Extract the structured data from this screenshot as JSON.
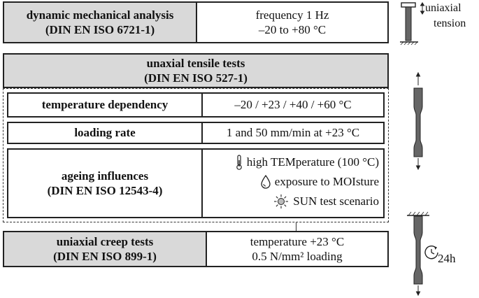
{
  "dma": {
    "title": "dynamic mechanical analysis",
    "standard": "(DIN EN ISO 6721-1)",
    "param1": "frequency 1 Hz",
    "param2": "–20 to +80 °C"
  },
  "tensile": {
    "title": "unaxial tensile tests",
    "standard": "(DIN EN ISO 527-1)",
    "temperature": {
      "label": "temperature dependency",
      "value": "–20 / +23 / +40 / +60 °C"
    },
    "loading": {
      "label": "loading rate",
      "value": "1 and 50 mm/min at +23 °C"
    },
    "ageing": {
      "label": "ageing influences",
      "standard": "(DIN EN ISO 12543-4)",
      "items": [
        {
          "text": "high TEMperature (100 °C)",
          "icon": "thermometer-icon"
        },
        {
          "text": "exposure to MOIsture",
          "icon": "droplet-icon"
        },
        {
          "text": "SUN test scenario",
          "icon": "sun-icon"
        }
      ]
    }
  },
  "creep": {
    "title": "uniaxial creep tests",
    "standard": "(DIN EN ISO 899-1)",
    "param1": "temperature +23 °C",
    "param2": "0.5 N/mm² loading"
  },
  "side": {
    "uniaxial": "uniaxial",
    "tension": "tension",
    "duration": "24h"
  }
}
